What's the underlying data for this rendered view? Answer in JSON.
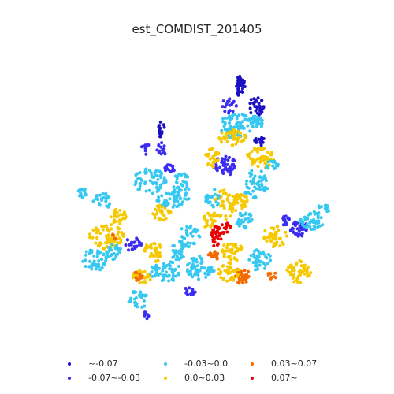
{
  "title": "est_COMDIST_201405",
  "colors": {
    "c0": "#1a0fc2",
    "c1": "#3a2df0",
    "c2": "#36c8f0",
    "c3": "#f6c800",
    "c4": "#f56a00",
    "c5": "#e60000"
  },
  "legend": [
    {
      "label": "~-0.07",
      "color": "#1a0fc2"
    },
    {
      "label": "-0.07~-0.03",
      "color": "#3a2df0"
    },
    {
      "label": "-0.03~0.0",
      "color": "#36c8f0"
    },
    {
      "label": "0.0~0.03",
      "color": "#f6c800"
    },
    {
      "label": "0.03~0.07",
      "color": "#f56a00"
    },
    {
      "label": "0.07~",
      "color": "#e60000"
    }
  ]
}
